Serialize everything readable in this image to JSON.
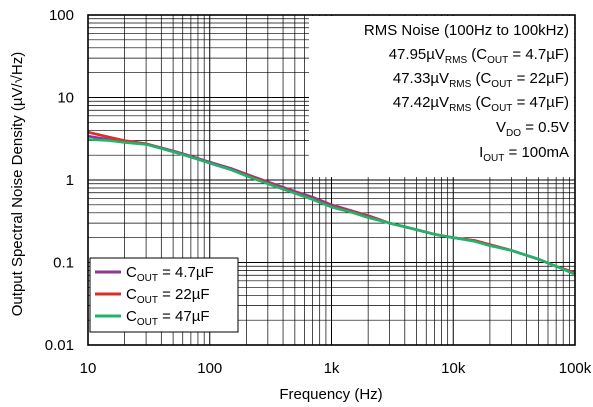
{
  "chart_data": {
    "type": "line",
    "xlabel": "Frequency (Hz)",
    "ylabel": "Output Spectral Noise Density (µV/√Hz)",
    "xscale": "log",
    "yscale": "log",
    "xlim": [
      10,
      100000
    ],
    "ylim": [
      0.01,
      100
    ],
    "grid": true,
    "legend_position": "bottom-left",
    "x_ticks": [
      {
        "value": 10,
        "label": "10"
      },
      {
        "value": 100,
        "label": "100"
      },
      {
        "value": 1000,
        "label": "1k"
      },
      {
        "value": 10000,
        "label": "10k"
      },
      {
        "value": 100000,
        "label": "100k"
      }
    ],
    "y_ticks": [
      {
        "value": 0.01,
        "label": "0.01"
      },
      {
        "value": 0.1,
        "label": "0.1"
      },
      {
        "value": 1,
        "label": "1"
      },
      {
        "value": 10,
        "label": "10"
      },
      {
        "value": 100,
        "label": "100"
      }
    ],
    "annotations": [
      {
        "text": "RMS Noise (100Hz to 100kHz)"
      },
      {
        "text": "47.95µV",
        "sub": "RMS",
        "text2": " (C",
        "sub2": "OUT",
        "text3": " = 4.7µF)"
      },
      {
        "text": "47.33µV",
        "sub": "RMS",
        "text2": " (C",
        "sub2": "OUT",
        "text3": " = 22µF)"
      },
      {
        "text": "47.42µV",
        "sub": "RMS",
        "text2": " (C",
        "sub2": "OUT",
        "text3": " = 47µF)"
      },
      {
        "text": "V",
        "sub": "DO",
        "text2": " = 0.5V"
      },
      {
        "text": "I",
        "sub": "OUT",
        "text2": " = 100mA"
      }
    ],
    "series": [
      {
        "name": "C_OUT = 4.7µF",
        "legend": {
          "pre": "C",
          "sub": "OUT",
          "post": " = 4.7µF"
        },
        "color": "#8e3a8e",
        "x": [
          10,
          15,
          20,
          30,
          50,
          70,
          100,
          150,
          200,
          300,
          500,
          700,
          1000,
          1500,
          2000,
          3000,
          5000,
          7000,
          10000,
          15000,
          20000,
          30000,
          50000,
          70000,
          100000
        ],
        "y": [
          3.4,
          3.1,
          2.95,
          2.75,
          2.25,
          1.95,
          1.65,
          1.38,
          1.18,
          0.95,
          0.73,
          0.62,
          0.5,
          0.42,
          0.37,
          0.3,
          0.25,
          0.22,
          0.2,
          0.185,
          0.165,
          0.14,
          0.11,
          0.09,
          0.075
        ]
      },
      {
        "name": "C_OUT = 22µF",
        "legend": {
          "pre": "C",
          "sub": "OUT",
          "post": " = 22µF"
        },
        "color": "#e02b2b",
        "x": [
          10,
          15,
          20,
          30,
          50,
          70,
          100,
          150,
          200,
          300,
          500,
          700,
          1000,
          1500,
          2000,
          3000,
          5000,
          7000,
          10000,
          15000,
          20000,
          30000,
          50000,
          70000,
          100000
        ],
        "y": [
          3.8,
          3.3,
          3.0,
          2.75,
          2.2,
          1.9,
          1.6,
          1.33,
          1.15,
          0.92,
          0.7,
          0.59,
          0.48,
          0.41,
          0.36,
          0.3,
          0.25,
          0.22,
          0.2,
          0.185,
          0.165,
          0.14,
          0.11,
          0.09,
          0.075
        ]
      },
      {
        "name": "C_OUT = 47µF",
        "legend": {
          "pre": "C",
          "sub": "OUT",
          "post": " = 47µF"
        },
        "color": "#1db56b",
        "x": [
          10,
          15,
          20,
          30,
          50,
          70,
          100,
          150,
          200,
          300,
          500,
          700,
          1000,
          1500,
          2000,
          3000,
          5000,
          7000,
          10000,
          15000,
          20000,
          30000,
          50000,
          70000,
          100000
        ],
        "y": [
          3.1,
          3.0,
          2.85,
          2.7,
          2.2,
          1.9,
          1.6,
          1.33,
          1.12,
          0.9,
          0.69,
          0.58,
          0.47,
          0.4,
          0.35,
          0.3,
          0.25,
          0.22,
          0.2,
          0.18,
          0.16,
          0.14,
          0.11,
          0.09,
          0.072
        ]
      }
    ]
  }
}
